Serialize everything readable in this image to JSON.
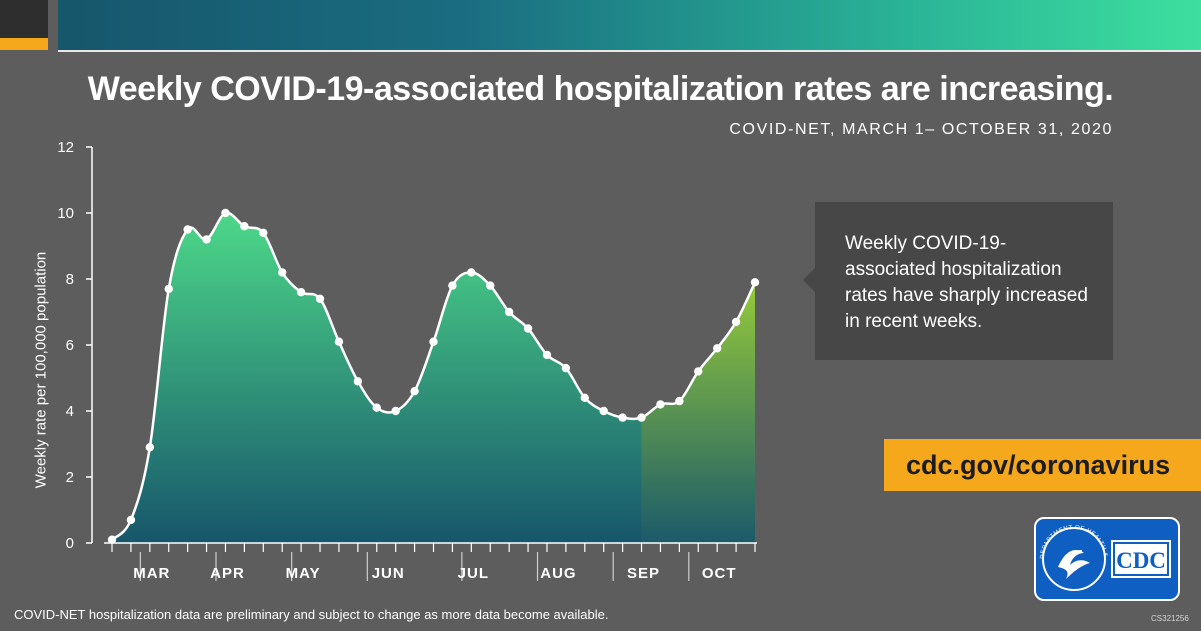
{
  "header": {
    "title": "Weekly COVID-19-associated hospitalization rates are increasing.",
    "subtitle": "COVID-NET, MARCH 1– OCTOBER 31, 2020"
  },
  "callout": {
    "text": "Weekly COVID-19-associated hospitalization rates have sharply increased in recent weeks."
  },
  "url": "cdc.gov/coronavirus",
  "logo": {
    "text": "CDC",
    "seal_text": "DEPARTMENT OF HEALTH & HUMAN SERVICES USA"
  },
  "footnote": "COVID-NET hospitalization data are preliminary and subject to change as more data become available.",
  "code": "CS321256",
  "colors": {
    "background": "#5d5d5d",
    "main_area_top": "#4dd889",
    "main_area_bottom": "#17566b",
    "recent_area_top": "#b6e82d",
    "recent_area_bottom": "#1b5a6a",
    "callout_bg": "#474747",
    "url_bg": "#f6a81c",
    "logo_bg": "#0f5ec2"
  },
  "chart_data": {
    "type": "area",
    "title": "Weekly COVID-19-associated hospitalization rates are increasing.",
    "subtitle": "COVID-NET, MARCH 1– OCTOBER 31, 2020",
    "xlabel": "",
    "ylabel": "Weekly rate per 100,000 population",
    "ylim": [
      0,
      12
    ],
    "yticks": [
      0,
      2,
      4,
      6,
      8,
      10,
      12
    ],
    "months": [
      "MAR",
      "APR",
      "MAY",
      "JUN",
      "JUL",
      "AUG",
      "SEP",
      "OCT"
    ],
    "month_tick_weeks": [
      2,
      6,
      10,
      14,
      19,
      23,
      27,
      31
    ],
    "month_label_weeks": [
      2,
      6,
      10,
      14.5,
      19,
      23.5,
      28,
      32
    ],
    "highlight_from_week": 28,
    "series": [
      {
        "name": "Weekly rate",
        "values": [
          0.1,
          0.7,
          2.9,
          7.7,
          9.5,
          9.2,
          10.0,
          9.6,
          9.4,
          8.2,
          7.6,
          7.4,
          6.1,
          4.9,
          4.1,
          4.0,
          4.6,
          6.1,
          7.8,
          8.2,
          7.8,
          7.0,
          6.5,
          5.7,
          5.3,
          4.4,
          4.0,
          3.8,
          3.8,
          4.2,
          4.3,
          5.2,
          5.9,
          6.7,
          7.9
        ]
      }
    ]
  }
}
